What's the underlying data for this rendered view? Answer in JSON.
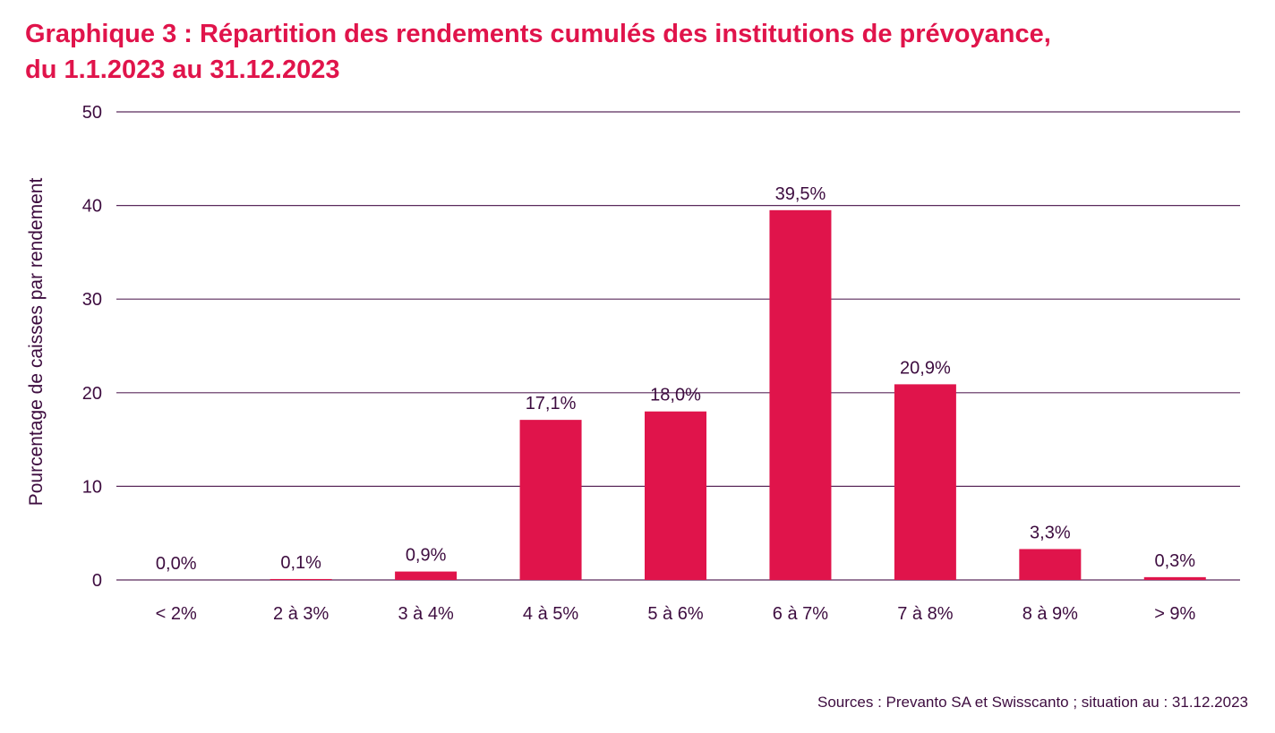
{
  "title_line1": "Graphique 3 : Répartition des rendements cumulés des institutions de prévoyance,",
  "title_line2": "du 1.1.2023 au 31.12.2023",
  "source": "Sources : Prevanto SA et Swisscanto ; situation au : 31.12.2023",
  "colors": {
    "bar": "#e0144b",
    "title": "#e0144b",
    "text": "#3d0c3f",
    "grid": "#5a2a5c"
  },
  "chart_data": {
    "type": "bar",
    "title": "Graphique 3 : Répartition des rendements cumulés des institutions de prévoyance, du 1.1.2023 au 31.12.2023",
    "xlabel": "",
    "ylabel": "Pourcentage de caisses par rendement",
    "categories": [
      "< 2%",
      "2 à 3%",
      "3 à 4%",
      "4 à 5%",
      "5 à 6%",
      "6 à 7%",
      "7 à 8%",
      "8 à 9%",
      "> 9%"
    ],
    "values": [
      0.0,
      0.1,
      0.9,
      17.1,
      18.0,
      39.5,
      20.9,
      3.3,
      0.3
    ],
    "data_labels": [
      "0,0%",
      "0,1%",
      "0,9%",
      "17,1%",
      "18,0%",
      "39,5%",
      "20,9%",
      "3,3%",
      "0,3%"
    ],
    "ylim": [
      0,
      50
    ],
    "yticks": [
      0,
      10,
      20,
      30,
      40,
      50
    ],
    "grid": true,
    "legend": "none"
  }
}
